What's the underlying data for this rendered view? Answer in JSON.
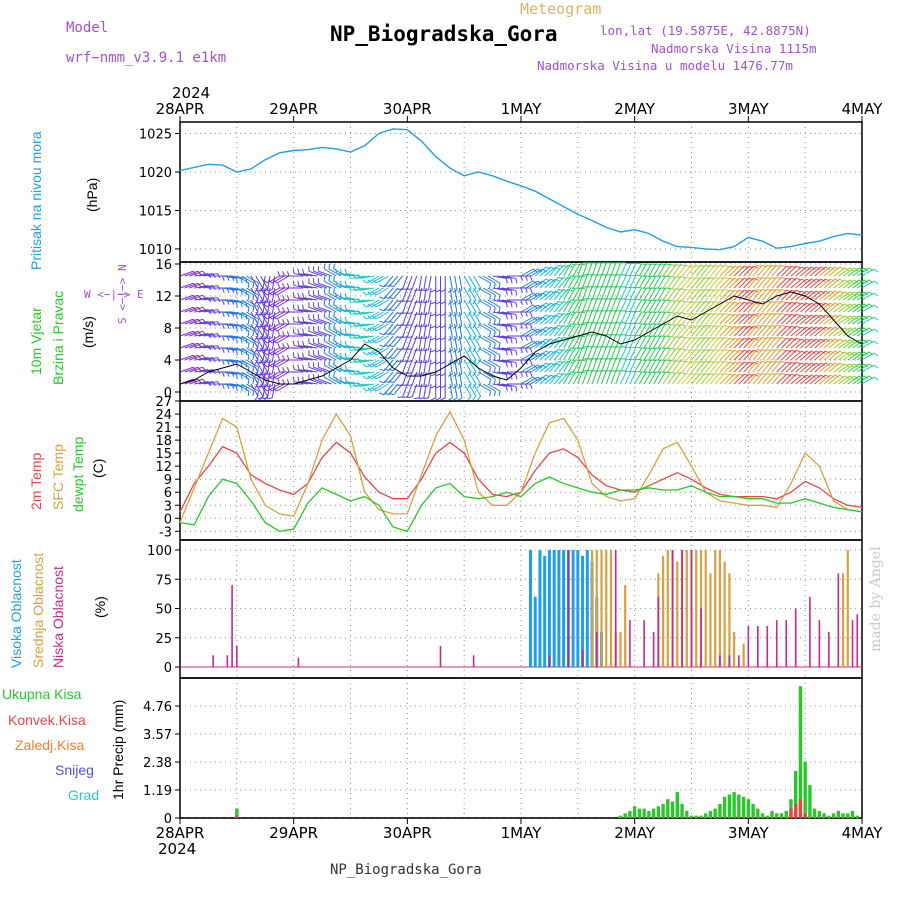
{
  "header": {
    "title": "NP_Biogradska_Gora",
    "meteogram_label": "Meteogram",
    "model_label": "Model",
    "model_name": "wrf−nmm_v3.9.1 e1km",
    "lonlat": "lon,lat (19.5875E, 42.8875N)",
    "altitude": "Nadmorska Visina 1115m",
    "model_altitude": "Nadmorska Visina u modelu 1476.77m"
  },
  "footer": {
    "station": "NP_Biogradska_Gora",
    "credit": "made by Angel"
  },
  "time_axis": {
    "top_year": "2024",
    "bottom_year": "2024",
    "labels": [
      "28APR",
      "29APR",
      "30APR",
      "1MAY",
      "2MAY",
      "3MAY",
      "4MAY"
    ],
    "hours": 144
  },
  "panels": {
    "pressure": {
      "label": "Pritisak na nivou mora",
      "unit": "(hPa)"
    },
    "wind": {
      "label1": "10m Vjetar",
      "label2": "Brzina i Pravac",
      "unit": "(m/s)",
      "compass": "W <−|−> E",
      "compass_vertical": "S <−|−> N"
    },
    "temp": {
      "label1": "2m Temp",
      "label2": "SFC Temp",
      "label3": "dewpt Temp",
      "unit": "(C)"
    },
    "cloud": {
      "label1": "Visoka Oblacnost",
      "label2": "Srednja Oblacnost",
      "label3": "Niska Oblacnost",
      "unit": "(%)"
    },
    "precip": {
      "unit": "1hr Precip (mm)",
      "legend": [
        "Ukupna Kisa",
        "Konvek.Kisa",
        "Zaledj.Kisa",
        "Snijeg",
        "Grad"
      ]
    }
  },
  "colors": {
    "pressure": "#1ea0e6",
    "temp2m": "#e64646",
    "sfc": "#d8a040",
    "dewpt": "#28c828",
    "high_cloud": "#1ea0e6",
    "mid_cloud": "#d8a040",
    "low_cloud": "#c8288c",
    "total_rain": "#28c828",
    "conv_rain": "#e64646",
    "freezing_rain": "#f08030",
    "snow": "#5050e6",
    "hail": "#28c8c8",
    "title_purple": "#a050d0"
  },
  "chart_data": [
    {
      "type": "line",
      "name": "pressure",
      "ylabel": "(hPa)",
      "ylim": [
        1008.3,
        1026.5
      ],
      "yticks": [
        1010,
        1015,
        1020,
        1025
      ],
      "grid": true,
      "x": [
        0,
        3,
        6,
        9,
        12,
        15,
        18,
        21,
        24,
        27,
        30,
        33,
        36,
        39,
        42,
        45,
        48,
        51,
        54,
        57,
        60,
        63,
        66,
        69,
        72,
        75,
        78,
        81,
        84,
        87,
        90,
        93,
        96,
        99,
        102,
        105,
        108,
        111,
        114,
        117,
        120,
        123,
        126,
        129,
        132,
        135,
        138,
        141,
        144
      ],
      "values": [
        1020.2,
        1020.6,
        1021.0,
        1020.9,
        1020.0,
        1020.4,
        1021.6,
        1022.5,
        1022.8,
        1022.9,
        1023.2,
        1023.0,
        1022.6,
        1023.4,
        1025.0,
        1025.6,
        1025.5,
        1024.0,
        1022.0,
        1020.5,
        1019.5,
        1020.0,
        1019.5,
        1018.8,
        1018.2,
        1017.5,
        1016.5,
        1015.5,
        1014.5,
        1013.7,
        1012.8,
        1012.2,
        1012.5,
        1012.0,
        1011.0,
        1010.3,
        1010.2,
        1010.0,
        1009.9,
        1010.3,
        1011.5,
        1011.0,
        1010.1,
        1010.3,
        1010.7,
        1011.0,
        1011.6,
        1012.0,
        1011.8
      ]
    },
    {
      "type": "line",
      "name": "wind",
      "ylabel": "(m/s)",
      "ylim": [
        0,
        16
      ],
      "yticks": [
        0,
        4,
        8,
        12,
        16
      ],
      "grid": true,
      "x": [
        0,
        3,
        6,
        9,
        12,
        15,
        18,
        21,
        24,
        27,
        30,
        33,
        36,
        39,
        42,
        45,
        48,
        51,
        54,
        57,
        60,
        63,
        66,
        69,
        72,
        75,
        78,
        81,
        84,
        87,
        90,
        93,
        96,
        99,
        102,
        105,
        108,
        111,
        114,
        117,
        120,
        123,
        126,
        129,
        132,
        135,
        138,
        141,
        144
      ],
      "speed": [
        1.0,
        1.5,
        2.5,
        3.0,
        3.5,
        2.5,
        1.5,
        1.0,
        1.0,
        1.5,
        2.0,
        3.0,
        4.0,
        6.0,
        5.0,
        3.0,
        2.0,
        2.0,
        2.5,
        3.5,
        4.5,
        3.0,
        2.0,
        1.5,
        3.0,
        5.0,
        6.0,
        6.5,
        7.0,
        7.5,
        7.0,
        6.0,
        6.5,
        7.5,
        8.5,
        9.5,
        9.0,
        10.0,
        11.0,
        12.0,
        11.5,
        11.0,
        12.0,
        12.5,
        12.0,
        11.0,
        9.0,
        7.0,
        6.0
      ],
      "direction_deg": [
        250,
        260,
        270,
        280,
        300,
        330,
        10,
        60,
        90,
        100,
        110,
        120,
        100,
        80,
        60,
        40,
        20,
        10,
        0,
        350,
        330,
        300,
        280,
        270,
        240,
        230,
        220,
        210,
        200,
        200,
        200,
        205,
        210,
        210,
        215,
        220,
        220,
        220,
        225,
        225,
        220,
        220,
        225,
        230,
        230,
        230,
        235,
        235,
        240
      ]
    },
    {
      "type": "line",
      "name": "temperature",
      "ylabel": "(C)",
      "ylim": [
        -5,
        27
      ],
      "yticks": [
        -3,
        0,
        3,
        6,
        9,
        12,
        15,
        18,
        21,
        24,
        27
      ],
      "grid": true,
      "x": [
        0,
        3,
        6,
        9,
        12,
        15,
        18,
        21,
        24,
        27,
        30,
        33,
        36,
        39,
        42,
        45,
        48,
        51,
        54,
        57,
        60,
        63,
        66,
        69,
        72,
        75,
        78,
        81,
        84,
        87,
        90,
        93,
        96,
        99,
        102,
        105,
        108,
        111,
        114,
        117,
        120,
        123,
        126,
        129,
        132,
        135,
        138,
        141,
        144
      ],
      "series": [
        {
          "name": "2m Temp",
          "values": [
            1.5,
            8.0,
            12.0,
            16.5,
            15.0,
            10.0,
            8.0,
            6.5,
            5.5,
            8.0,
            14.0,
            17.5,
            15.0,
            9.5,
            6.0,
            4.5,
            4.5,
            9.0,
            15.0,
            17.5,
            15.0,
            9.0,
            5.5,
            5.0,
            6.0,
            11.0,
            15.0,
            16.0,
            14.0,
            10.0,
            7.5,
            6.5,
            6.0,
            7.5,
            9.0,
            10.5,
            9.0,
            7.0,
            5.5,
            5.0,
            5.0,
            5.0,
            4.5,
            6.0,
            8.5,
            7.0,
            4.5,
            3.0,
            2.5
          ]
        },
        {
          "name": "SFC Temp",
          "values": [
            -1.0,
            7.0,
            15.0,
            23.0,
            21.0,
            9.0,
            3.0,
            1.0,
            0.5,
            8.0,
            18.0,
            24.0,
            19.0,
            6.0,
            2.0,
            1.0,
            1.0,
            10.0,
            19.0,
            24.5,
            18.0,
            6.0,
            3.0,
            3.0,
            6.0,
            15.0,
            22.0,
            23.0,
            18.0,
            8.0,
            5.0,
            4.0,
            4.5,
            10.0,
            16.0,
            17.5,
            12.0,
            6.0,
            4.0,
            3.5,
            3.0,
            3.0,
            2.5,
            8.0,
            15.0,
            12.0,
            4.0,
            2.0,
            1.5
          ]
        },
        {
          "name": "dewpt Temp",
          "values": [
            -1.0,
            -1.5,
            5.0,
            9.0,
            8.0,
            4.0,
            -1.0,
            -3.0,
            -2.5,
            3.5,
            7.0,
            5.5,
            4.0,
            5.0,
            3.0,
            -2.0,
            -3.0,
            3.0,
            7.0,
            8.0,
            5.0,
            4.5,
            5.0,
            6.0,
            5.0,
            8.0,
            9.5,
            8.0,
            7.0,
            6.0,
            5.5,
            6.5,
            6.5,
            7.0,
            6.5,
            6.5,
            7.5,
            6.0,
            5.0,
            5.0,
            4.5,
            4.5,
            3.5,
            3.5,
            4.5,
            3.5,
            2.5,
            2.0,
            1.5
          ]
        }
      ]
    },
    {
      "type": "bar",
      "name": "cloud",
      "ylabel": "(%)",
      "ylim": [
        0,
        100
      ],
      "yticks": [
        0,
        25,
        50,
        75,
        100
      ],
      "grid": true,
      "series": [
        {
          "name": "Visoka Oblacnost",
          "x": [
            74,
            75,
            76,
            77,
            78,
            79,
            80,
            81,
            82,
            83,
            84,
            85,
            86,
            87,
            88,
            89
          ],
          "values": [
            100,
            60,
            100,
            95,
            100,
            100,
            100,
            100,
            100,
            100,
            100,
            95,
            100,
            90,
            60,
            30
          ]
        },
        {
          "name": "Srednja Oblacnost",
          "x": [
            87,
            88,
            89,
            90,
            91,
            92,
            93,
            94,
            101,
            102,
            103,
            104,
            105,
            106,
            107,
            108,
            109,
            110,
            111,
            112,
            113,
            114,
            115,
            116,
            117,
            119,
            140,
            141
          ],
          "values": [
            100,
            100,
            100,
            100,
            100,
            30,
            30,
            70,
            80,
            95,
            100,
            100,
            90,
            100,
            100,
            100,
            100,
            100,
            100,
            80,
            100,
            100,
            90,
            80,
            30,
            20,
            80,
            100
          ]
        },
        {
          "name": "Niska Oblacnost",
          "x": [
            7,
            10,
            11,
            12,
            25,
            55,
            62,
            78,
            82,
            85,
            88,
            92,
            95,
            98,
            100,
            101,
            104,
            106,
            108,
            110,
            114,
            116,
            118,
            120,
            122,
            124,
            126,
            128,
            130,
            133,
            135,
            137,
            139,
            142,
            143
          ],
          "values": [
            10,
            10,
            70,
            18,
            8,
            18,
            10,
            10,
            100,
            15,
            30,
            100,
            40,
            40,
            30,
            60,
            100,
            100,
            100,
            50,
            10,
            10,
            10,
            35,
            35,
            35,
            40,
            40,
            50,
            60,
            40,
            30,
            80,
            40,
            45
          ]
        }
      ]
    },
    {
      "type": "bar",
      "name": "precip",
      "ylabel": "1hr Precip (mm)",
      "ylim": [
        0,
        5.95
      ],
      "yticks": [
        0,
        1.19,
        2.38,
        3.57,
        4.76
      ],
      "grid": true,
      "series": [
        {
          "name": "Ukupna Kisa",
          "x": [
            12,
            93,
            94,
            95,
            96,
            97,
            98,
            99,
            100,
            101,
            102,
            103,
            104,
            105,
            106,
            107,
            108,
            109,
            110,
            111,
            112,
            113,
            114,
            115,
            116,
            117,
            118,
            119,
            120,
            121,
            122,
            123,
            124,
            125,
            126,
            127,
            128,
            129,
            130,
            131,
            132,
            133,
            134,
            135,
            136,
            137,
            138,
            139,
            140,
            141,
            142,
            143
          ],
          "values": [
            0.4,
            0.1,
            0.2,
            0.3,
            0.5,
            0.4,
            0.4,
            0.3,
            0.4,
            0.5,
            0.6,
            0.8,
            0.7,
            1.1,
            0.6,
            0.3,
            0.1,
            0.1,
            0.1,
            0.2,
            0.3,
            0.4,
            0.6,
            0.9,
            1.0,
            1.1,
            1.0,
            0.9,
            0.8,
            0.6,
            0.4,
            0.2,
            0.1,
            0.3,
            0.2,
            0.2,
            0.3,
            0.8,
            2.0,
            5.6,
            2.4,
            1.4,
            0.4,
            0.3,
            0.2,
            0.1,
            0.2,
            0.3,
            0.2,
            0.2,
            0.3,
            0.1
          ]
        },
        {
          "name": "Konvek.Kisa",
          "x": [
            12,
            129,
            130,
            131,
            132
          ],
          "values": [
            0.1,
            0.4,
            0.6,
            0.8,
            0.2
          ]
        }
      ]
    }
  ]
}
